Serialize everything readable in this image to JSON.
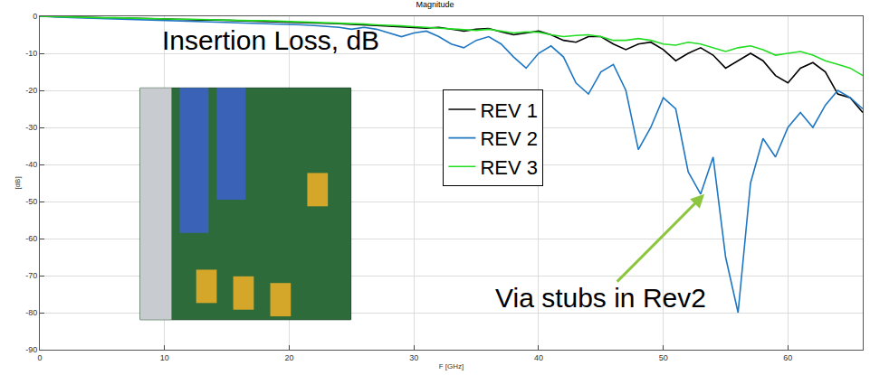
{
  "chart_data": {
    "type": "line",
    "title": "Magnitude",
    "x_label": "F [GHz]",
    "y_label": "[dB]",
    "annotations": [
      "Insertion Loss, dB",
      "Via stubs in Rev2"
    ],
    "x": [
      0,
      1,
      2,
      3,
      4,
      5,
      6,
      7,
      8,
      9,
      10,
      11,
      12,
      13,
      14,
      15,
      16,
      17,
      18,
      19,
      20,
      21,
      22,
      23,
      24,
      25,
      26,
      27,
      28,
      29,
      30,
      31,
      32,
      33,
      34,
      35,
      36,
      37,
      38,
      39,
      40,
      41,
      42,
      43,
      44,
      45,
      46,
      47,
      48,
      49,
      50,
      51,
      52,
      53,
      54,
      55,
      56,
      57,
      58,
      59,
      60,
      61,
      62,
      63,
      64,
      65,
      66
    ],
    "series": [
      {
        "name": "REV 1",
        "color": "#000000",
        "values": [
          0,
          -0.1,
          -0.2,
          -0.3,
          -0.3,
          -0.4,
          -0.5,
          -0.5,
          -0.6,
          -0.7,
          -0.8,
          -0.8,
          -0.9,
          -1.0,
          -1.0,
          -1.1,
          -1.2,
          -1.3,
          -1.3,
          -1.4,
          -1.5,
          -1.6,
          -1.7,
          -1.8,
          -2.0,
          -2.2,
          -2.3,
          -2.5,
          -2.7,
          -2.9,
          -3.1,
          -3.2,
          -3.0,
          -3.5,
          -4.0,
          -3.5,
          -3.3,
          -4.2,
          -5.0,
          -4.5,
          -4.0,
          -5.0,
          -6.5,
          -7.0,
          -5.5,
          -5.5,
          -7.5,
          -9.0,
          -7.5,
          -7.0,
          -9.0,
          -12,
          -10,
          -8.5,
          -10.5,
          -14,
          -12,
          -10,
          -12,
          -16,
          -18,
          -14,
          -12.5,
          -15,
          -21,
          -22,
          -26
        ]
      },
      {
        "name": "REV 2",
        "color": "#1f77c4",
        "values": [
          0,
          -0.2,
          -0.3,
          -0.4,
          -0.5,
          -0.6,
          -0.7,
          -0.8,
          -0.9,
          -1.0,
          -1.1,
          -1.2,
          -1.3,
          -1.4,
          -1.5,
          -1.6,
          -1.7,
          -1.8,
          -1.9,
          -2.0,
          -2.1,
          -2.3,
          -2.5,
          -2.7,
          -3.0,
          -3.5,
          -3.0,
          -3.5,
          -4.5,
          -5.5,
          -4.5,
          -4.0,
          -5.5,
          -7.5,
          -8.5,
          -6.5,
          -5.5,
          -7.5,
          -11,
          -14,
          -10,
          -8,
          -11,
          -18,
          -21,
          -15,
          -13,
          -20,
          -36,
          -30,
          -22,
          -25,
          -42,
          -48,
          -38,
          -65,
          -80,
          -45,
          -33,
          -38,
          -30,
          -26,
          -30,
          -24,
          -20,
          -22,
          -25
        ]
      },
      {
        "name": "REV 3",
        "color": "#22dd22",
        "values": [
          0,
          -0.1,
          -0.2,
          -0.2,
          -0.3,
          -0.4,
          -0.4,
          -0.5,
          -0.6,
          -0.6,
          -0.7,
          -0.8,
          -0.8,
          -0.9,
          -1.0,
          -1.0,
          -1.1,
          -1.2,
          -1.2,
          -1.3,
          -1.4,
          -1.5,
          -1.6,
          -1.7,
          -1.8,
          -2.0,
          -2.1,
          -2.3,
          -2.4,
          -2.6,
          -2.8,
          -3.0,
          -3.2,
          -3.4,
          -3.5,
          -3.8,
          -3.5,
          -4.0,
          -4.5,
          -4.2,
          -4.3,
          -5.0,
          -5.5,
          -5.2,
          -5.0,
          -5.5,
          -6.5,
          -6.5,
          -6.0,
          -6.5,
          -7.5,
          -7.8,
          -7.0,
          -7.5,
          -8.5,
          -9.5,
          -8.5,
          -8.0,
          -9.0,
          -10.5,
          -10,
          -9.5,
          -10.5,
          -12,
          -13,
          -14,
          -16
        ]
      }
    ],
    "xlim": [
      0,
      66
    ],
    "xticks": [
      0,
      10,
      20,
      30,
      40,
      50,
      60
    ],
    "ylim": [
      -90,
      0
    ],
    "yticks": [
      -90,
      -80,
      -70,
      -60,
      -50,
      -40,
      -30,
      -20,
      -10,
      0
    ],
    "grid": true,
    "legend": "center"
  }
}
